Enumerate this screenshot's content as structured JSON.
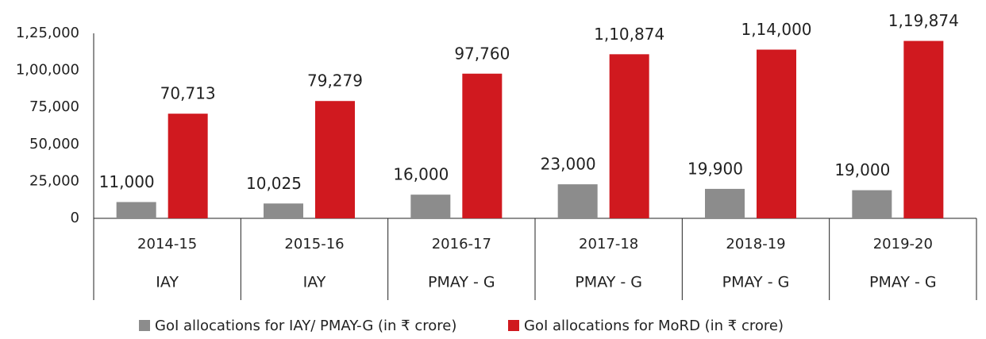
{
  "chart_data": {
    "type": "bar",
    "categories": [
      "2014-15",
      "2015-16",
      "2016-17",
      "2017-18",
      "2018-19",
      "2019-20"
    ],
    "category_groups": [
      "IAY",
      "IAY",
      "PMAY - G",
      "PMAY - G",
      "PMAY - G",
      "PMAY - G"
    ],
    "series": [
      {
        "name": "GoI allocations for IAY/ PMAY-G  (in ₹ crore)",
        "color": "#8c8c8c",
        "values": [
          11000,
          10025,
          16000,
          23000,
          19900,
          19000
        ],
        "value_labels": [
          "11,000",
          "10,025",
          "16,000",
          "23,000",
          "19,900",
          "19,000"
        ]
      },
      {
        "name": "GoI allocations for MoRD (in ₹ crore)",
        "color": "#d0191f",
        "values": [
          70713,
          79279,
          97760,
          110874,
          114000,
          119874
        ],
        "value_labels": [
          "70,713",
          "79,279",
          "97,760",
          "1,10,874",
          "1,14,000",
          "1,19,874"
        ]
      }
    ],
    "ylim": [
      0,
      125000
    ],
    "yticks": [
      0,
      {
        "value": 25000,
        "label": "25,000"
      },
      {
        "value": 50000,
        "label": "50,000"
      },
      {
        "value": 75000,
        "label": "75,000"
      },
      {
        "value": 100000,
        "label": "1,00,000"
      },
      {
        "value": 125000,
        "label": "1,25,000"
      }
    ],
    "grid": false,
    "legend": "bottom"
  }
}
